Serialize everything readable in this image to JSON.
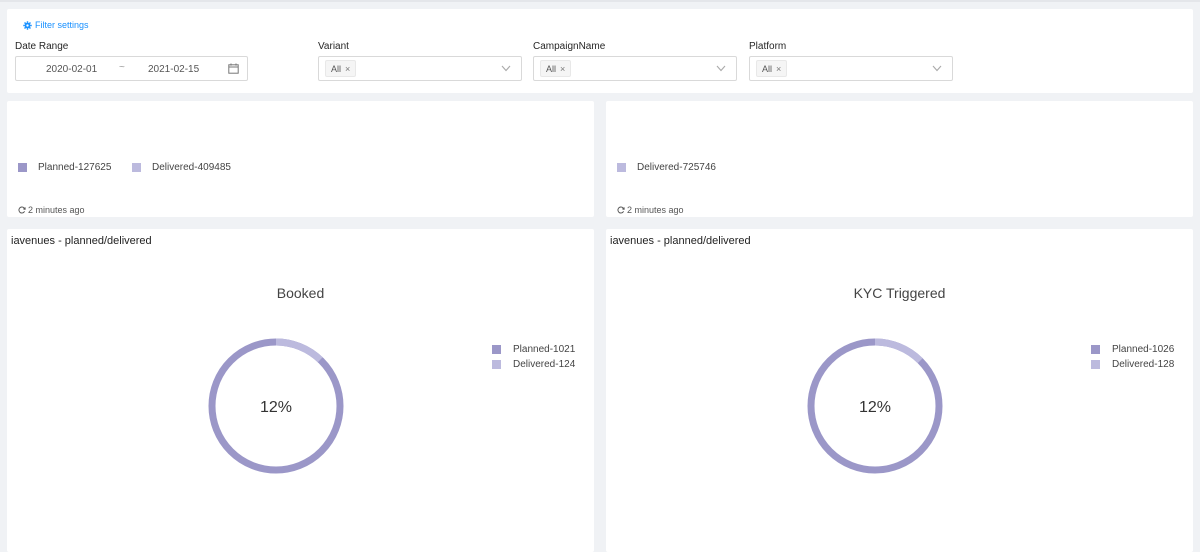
{
  "filter": {
    "settings_label": "Filter settings",
    "date_range_label": "Date Range",
    "date_start": "2020-02-01",
    "date_sep": "~",
    "date_end": "2021-02-15",
    "variant_label": "Variant",
    "variant_value": "All",
    "campaign_label": "CampaignName",
    "campaign_value": "All",
    "platform_label": "Platform",
    "platform_value": "All",
    "tag_close": "×"
  },
  "cards": {
    "left_summary": {
      "legend": [
        {
          "label": "Planned-127625",
          "series": "planned"
        },
        {
          "label": "Delivered-409485",
          "series": "delivered"
        }
      ],
      "refresh": "2 minutes ago"
    },
    "right_summary": {
      "legend": [
        {
          "label": "Delivered-725746",
          "series": "delivered"
        }
      ],
      "refresh": "2 minutes ago"
    }
  },
  "colors": {
    "planned": "#9b97c8",
    "delivered": "#bcbade",
    "accent": "#1890ff"
  },
  "chart_data": [
    {
      "type": "pie",
      "panel_title": "iavenues - planned/delivered",
      "title": "Booked",
      "center_label": "12%",
      "series": [
        {
          "name": "Planned-1021",
          "value": 1021
        },
        {
          "name": "Delivered-124",
          "value": 124
        }
      ]
    },
    {
      "type": "pie",
      "panel_title": "iavenues - planned/delivered",
      "title": "KYC Triggered",
      "center_label": "12%",
      "series": [
        {
          "name": "Planned-1026",
          "value": 1026
        },
        {
          "name": "Delivered-128",
          "value": 128
        }
      ]
    }
  ]
}
